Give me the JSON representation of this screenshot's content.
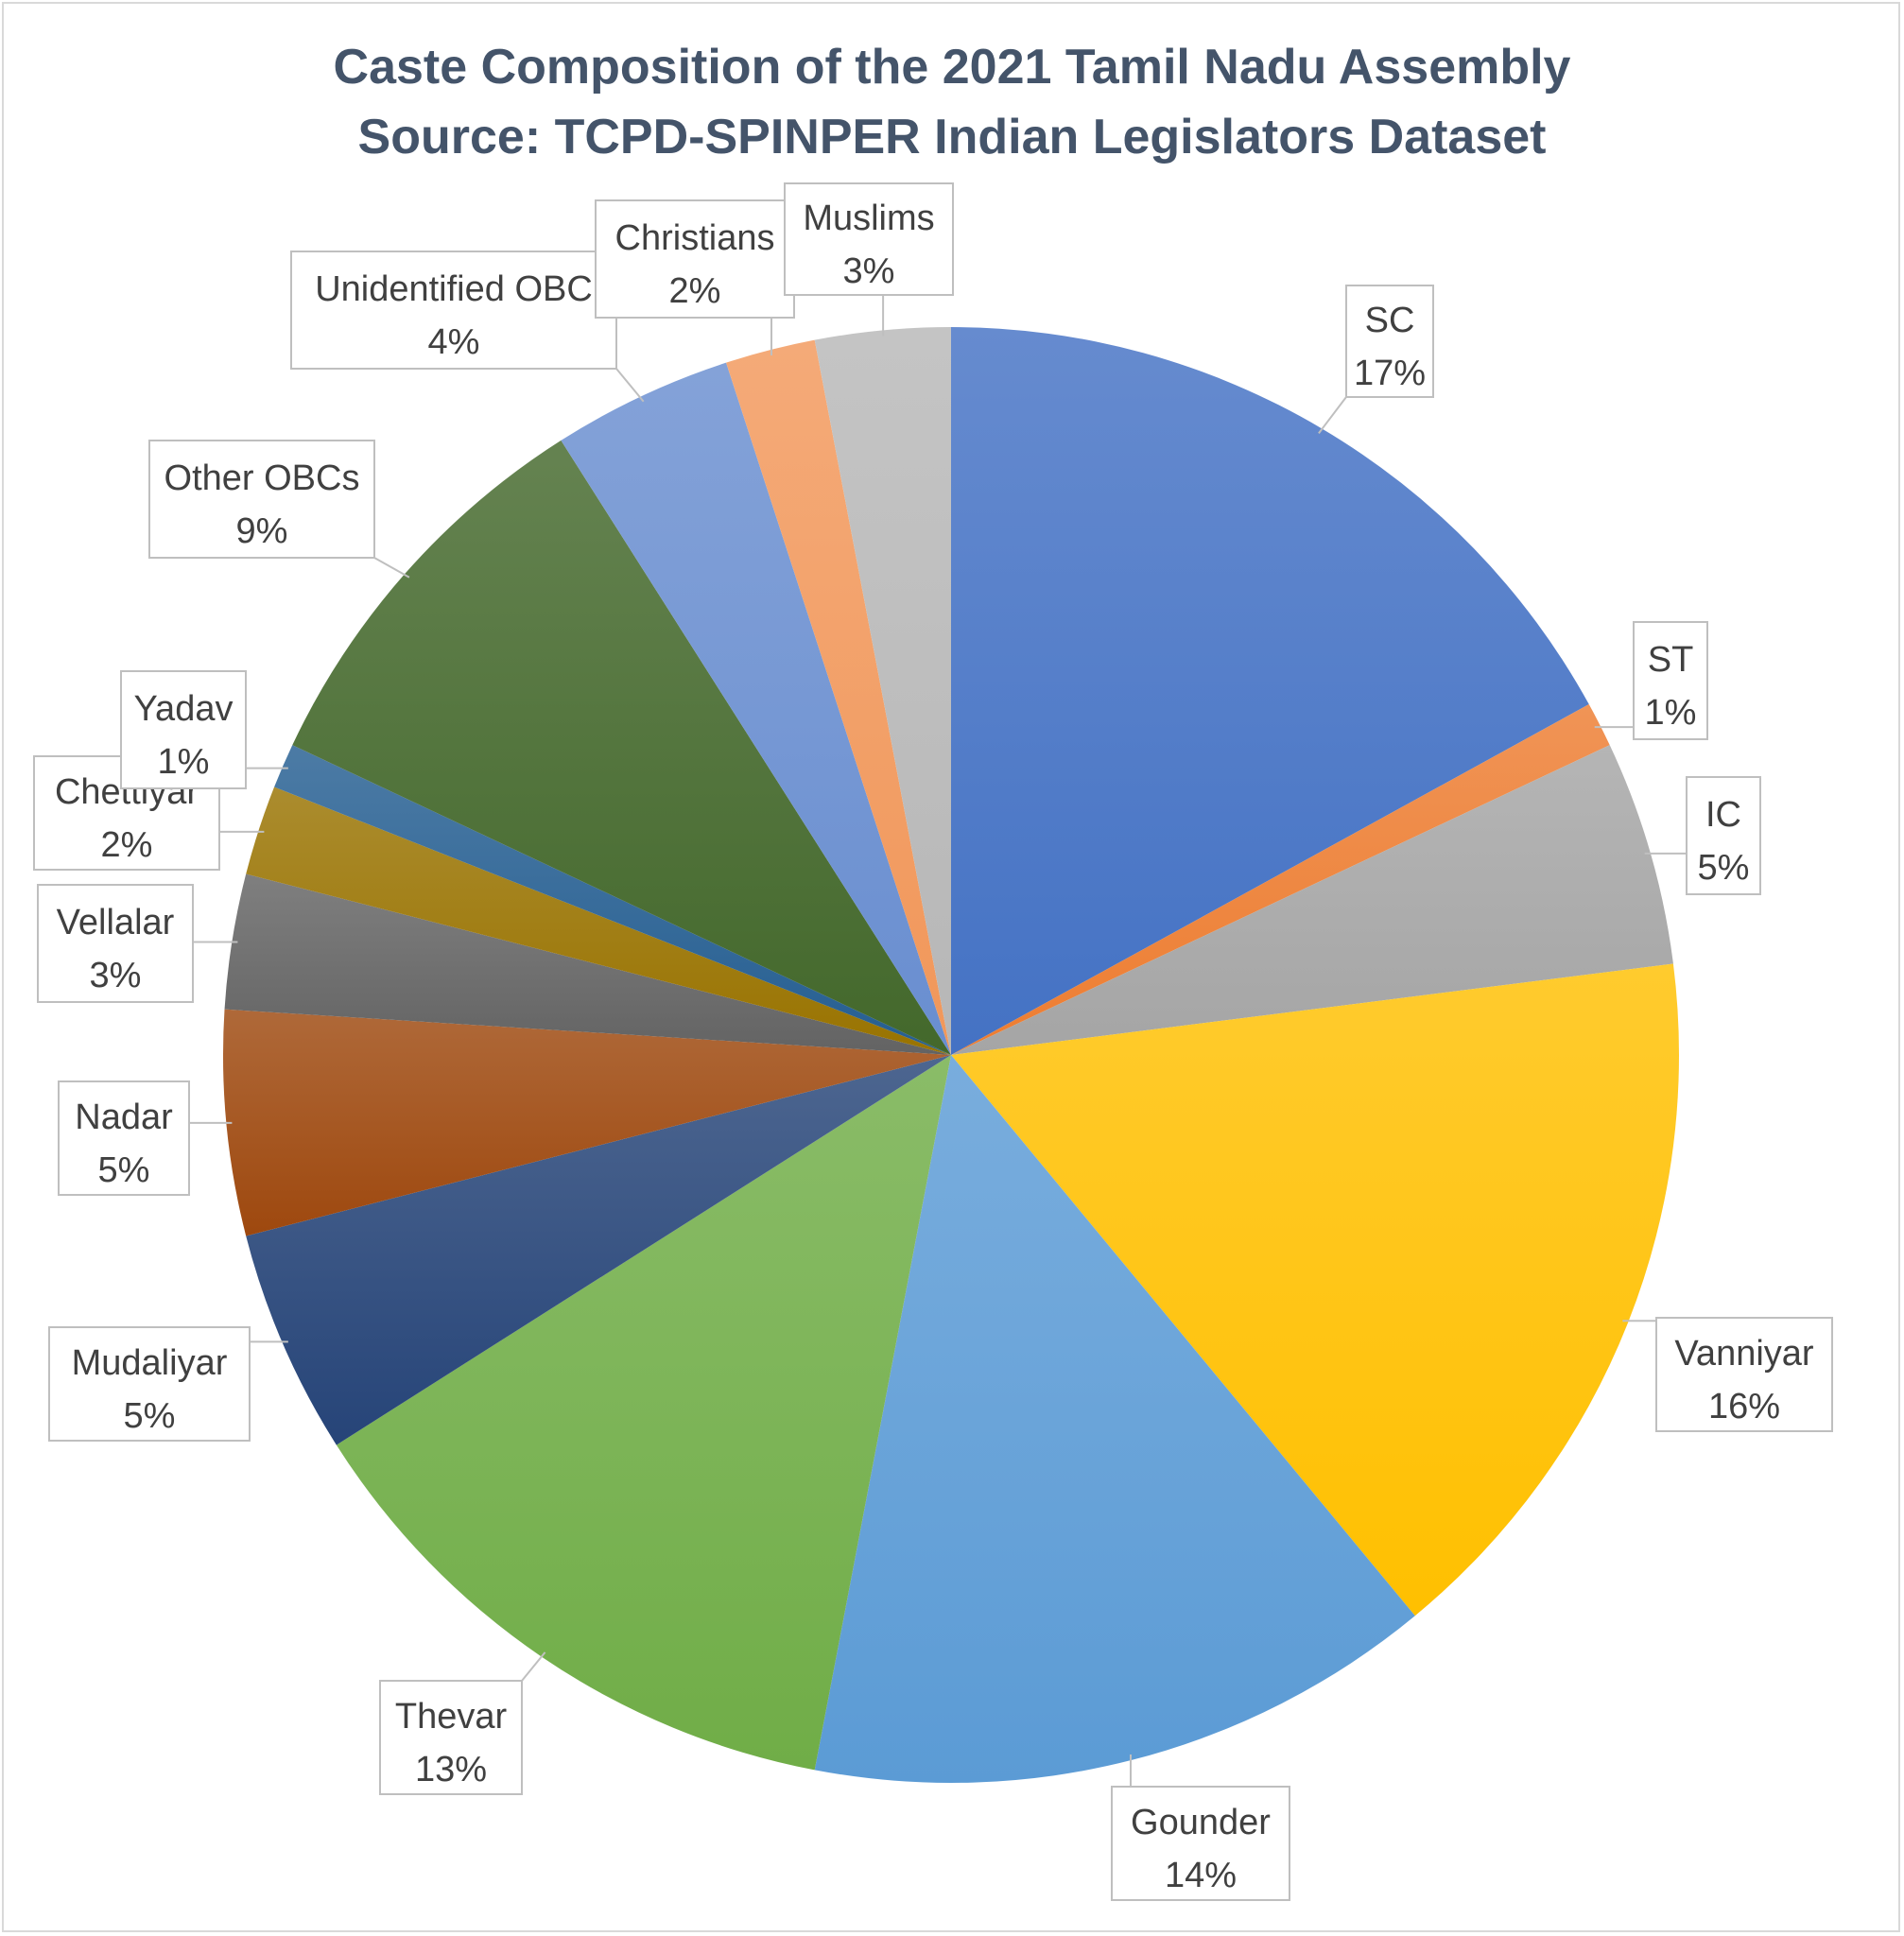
{
  "chart_data": {
    "type": "pie",
    "title": "Caste Composition of the 2021 Tamil Nadu Assembly",
    "subtitle": "Source: TCPD-SPINPER Indian Legislators Dataset",
    "start_angle_deg": 0,
    "direction": "clockwise",
    "slices": [
      {
        "name": "SC",
        "value": 17,
        "label": "17%",
        "color": "#4472c4"
      },
      {
        "name": "ST",
        "value": 1,
        "label": "1%",
        "color": "#ed7d31"
      },
      {
        "name": "IC",
        "value": 5,
        "label": "5%",
        "color": "#a5a5a5"
      },
      {
        "name": "Vanniyar",
        "value": 16,
        "label": "16%",
        "color": "#ffc000"
      },
      {
        "name": "Gounder",
        "value": 14,
        "label": "14%",
        "color": "#5b9bd5"
      },
      {
        "name": "Thevar",
        "value": 13,
        "label": "13%",
        "color": "#70ad47"
      },
      {
        "name": "Mudaliyar",
        "value": 5,
        "label": "5%",
        "color": "#264478"
      },
      {
        "name": "Nadar",
        "value": 5,
        "label": "5%",
        "color": "#9e480e"
      },
      {
        "name": "Vellalar",
        "value": 3,
        "label": "3%",
        "color": "#636363"
      },
      {
        "name": "Chettiyar",
        "value": 2,
        "label": "2%",
        "color": "#997300"
      },
      {
        "name": "Yadav",
        "value": 1,
        "label": "1%",
        "color": "#255e91"
      },
      {
        "name": "Other OBCs",
        "value": 9,
        "label": "9%",
        "color": "#43682b"
      },
      {
        "name": "Unidentified OBC",
        "value": 4,
        "label": "4%",
        "color": "#698ed0"
      },
      {
        "name": "Christians",
        "value": 2,
        "label": "2%",
        "color": "#f1975a"
      },
      {
        "name": "Muslims",
        "value": 3,
        "label": "3%",
        "color": "#b7b7b7"
      }
    ]
  }
}
